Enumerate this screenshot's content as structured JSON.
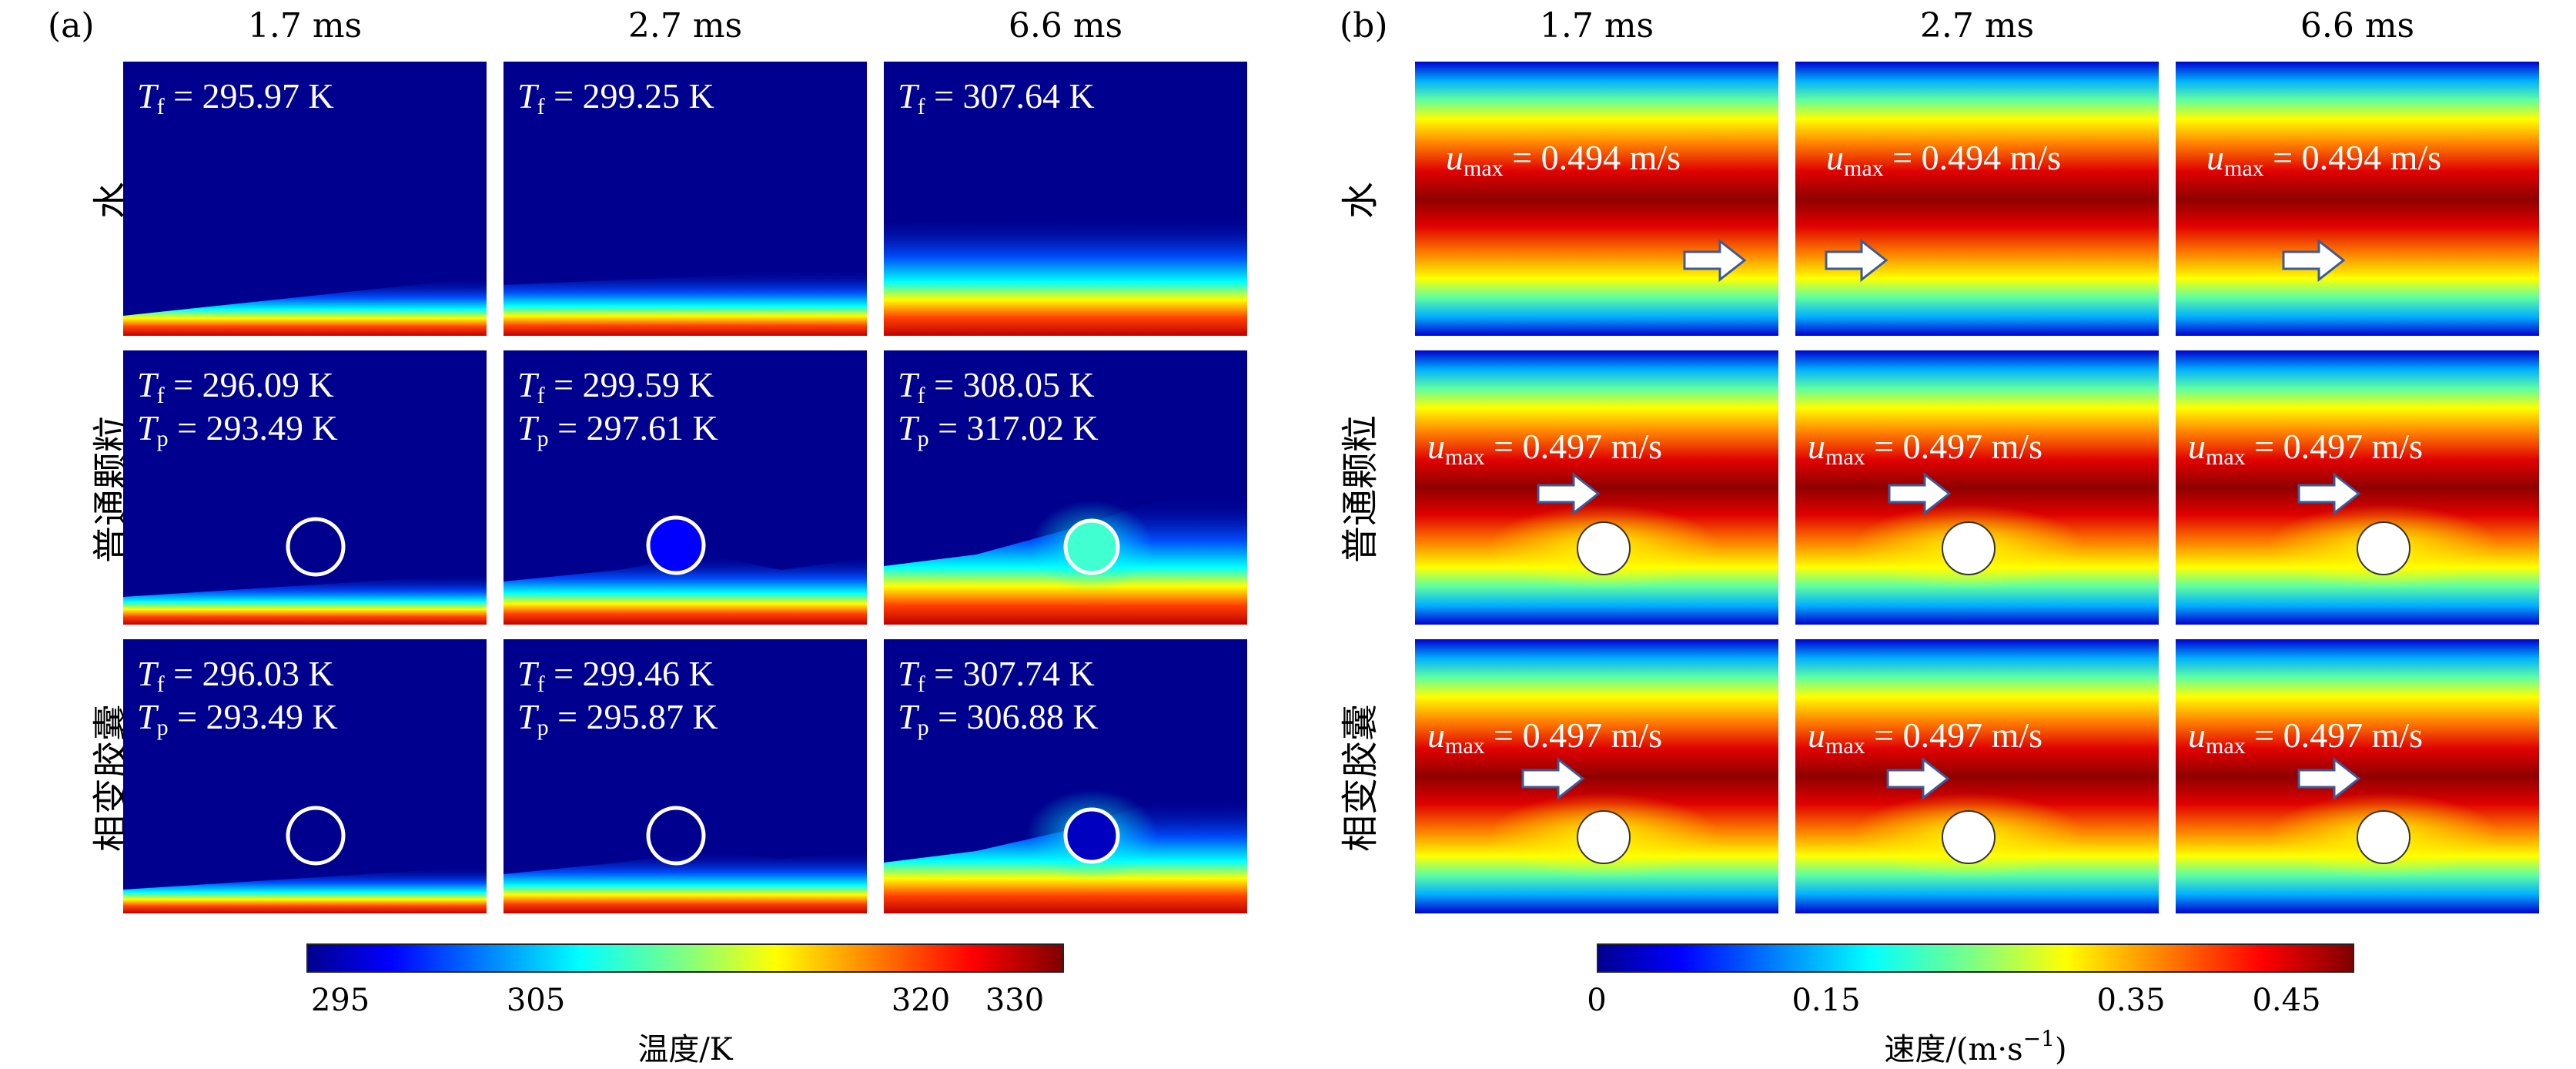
{
  "colors": {
    "jet": [
      "#00008f",
      "#0000ff",
      "#0080ff",
      "#00ffff",
      "#80ff80",
      "#ffff00",
      "#ff8000",
      "#ff0000",
      "#800000"
    ]
  },
  "panel_a": {
    "label": "(a)",
    "columns": [
      "1.7 ms",
      "2.7 ms",
      "6.6 ms"
    ],
    "rows": [
      "水",
      "普通颗粒",
      "相变胶囊"
    ],
    "cells": [
      [
        {
          "tf": "295.97 K"
        },
        {
          "tf": "299.25 K"
        },
        {
          "tf": "307.64 K"
        }
      ],
      [
        {
          "tf": "296.09 K",
          "tp": "293.49 K"
        },
        {
          "tf": "299.59 K",
          "tp": "297.61 K"
        },
        {
          "tf": "308.05 K",
          "tp": "317.02 K"
        }
      ],
      [
        {
          "tf": "296.03 K",
          "tp": "293.49 K"
        },
        {
          "tf": "299.46 K",
          "tp": "295.87 K"
        },
        {
          "tf": "307.74 K",
          "tp": "306.88 K"
        }
      ]
    ],
    "colorbar": {
      "title": "温度/K",
      "ticks": [
        "295",
        "305",
        "320",
        "330"
      ]
    }
  },
  "panel_b": {
    "label": "(b)",
    "columns": [
      "1.7 ms",
      "2.7 ms",
      "6.6 ms"
    ],
    "rows": [
      "水",
      "普通颗粒",
      "相变胶囊"
    ],
    "cells": [
      [
        {
          "umax": "0.494 m/s"
        },
        {
          "umax": "0.494 m/s"
        },
        {
          "umax": "0.494 m/s"
        }
      ],
      [
        {
          "umax": "0.497 m/s"
        },
        {
          "umax": "0.497 m/s"
        },
        {
          "umax": "0.497 m/s"
        }
      ],
      [
        {
          "umax": "0.497 m/s"
        },
        {
          "umax": "0.497 m/s"
        },
        {
          "umax": "0.497 m/s"
        }
      ]
    ],
    "colorbar": {
      "title": "速度/(m·s",
      "title_sup": "−1",
      "title_end": ")",
      "ticks": [
        "0",
        "0.15",
        "0.35",
        "0.45"
      ]
    }
  },
  "symbols": {
    "T": "T",
    "f": "f",
    "p": "p",
    "u": "u",
    "max": "max",
    "eq": " = "
  }
}
